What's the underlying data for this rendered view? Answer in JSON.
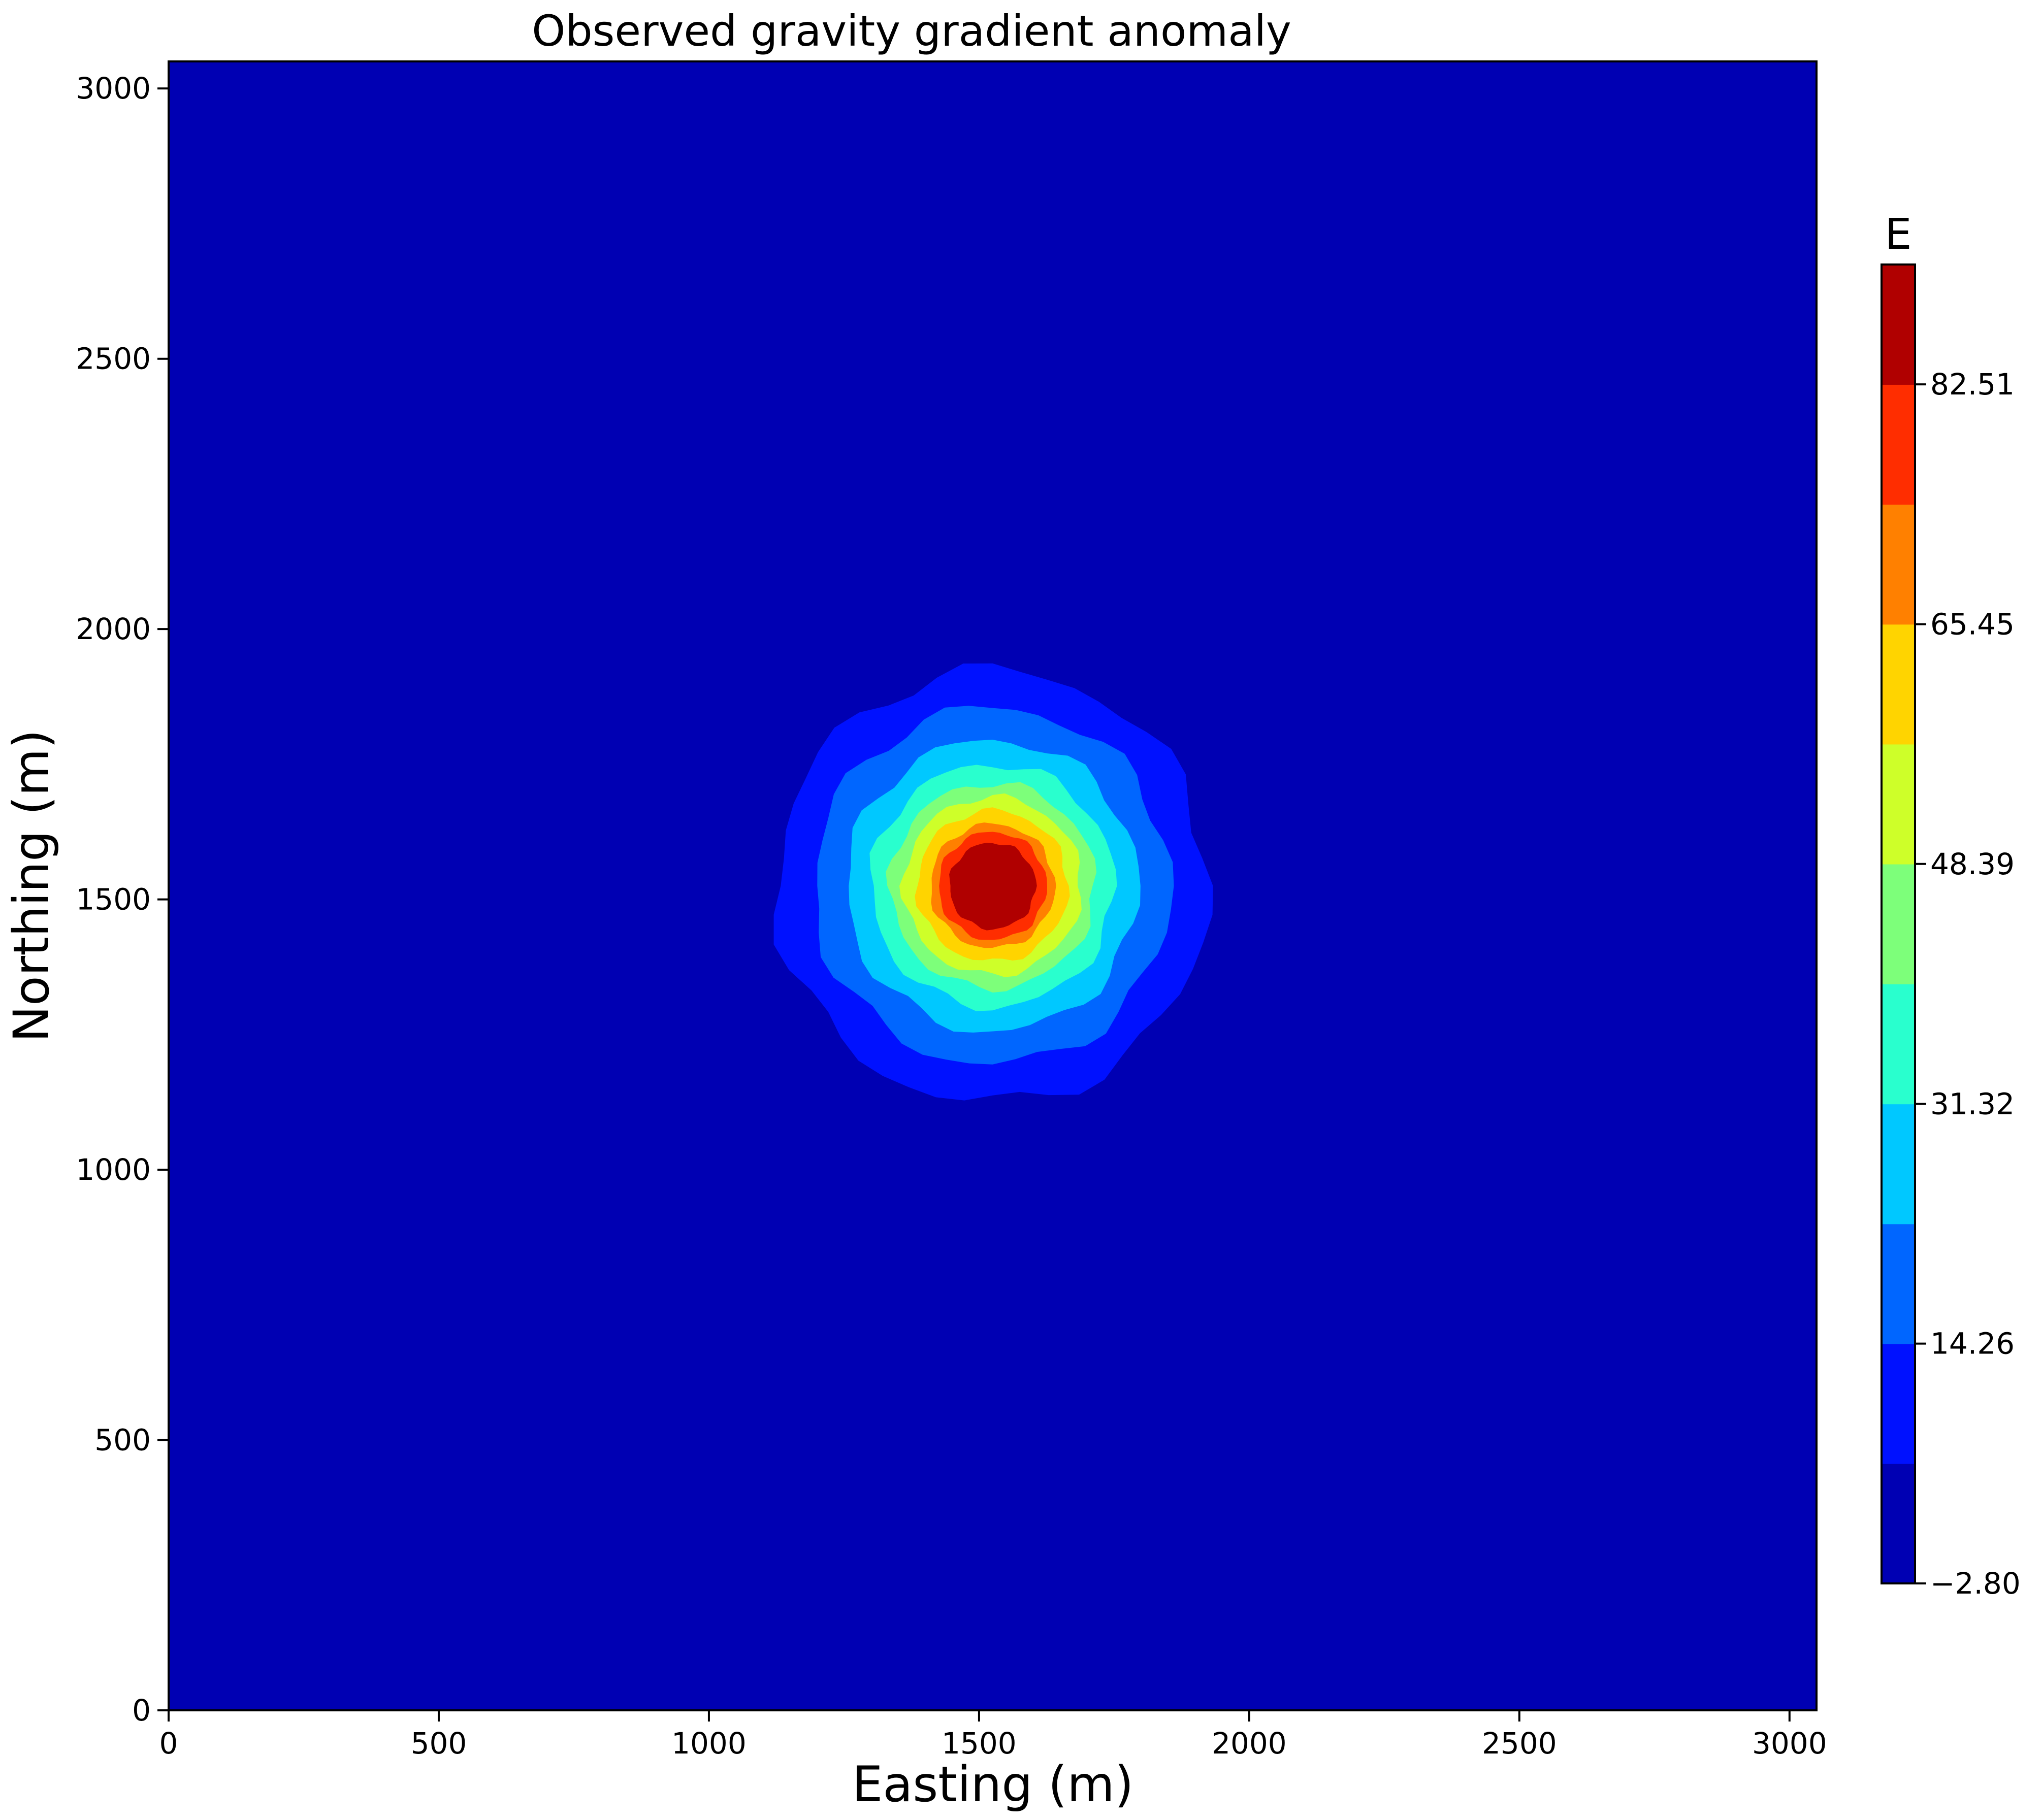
{
  "chart_data": {
    "type": "contourf",
    "title": "Observed gravity gradient anomaly",
    "xlabel": "Easting (m)",
    "ylabel": "Northing (m)",
    "xlim": [
      0,
      3050
    ],
    "ylim": [
      0,
      3050
    ],
    "x_ticks": [
      0,
      500,
      1000,
      1500,
      2000,
      2500,
      3000
    ],
    "y_ticks": [
      0,
      500,
      1000,
      1500,
      2000,
      2500,
      3000
    ],
    "x_tick_labels": [
      "0",
      "500",
      "1000",
      "1500",
      "2000",
      "2500",
      "3000"
    ],
    "y_tick_labels": [
      "0",
      "500",
      "1000",
      "1500",
      "2000",
      "2500",
      "3000"
    ],
    "anomaly": {
      "center_x": 1525,
      "center_y": 1525,
      "contours": [
        {
          "level": 5.73,
          "radius": 400,
          "color": "#0011ff"
        },
        {
          "level": 14.26,
          "radius": 330,
          "color": "#0066ff"
        },
        {
          "level": 22.79,
          "radius": 270,
          "color": "#00c8ff"
        },
        {
          "level": 31.32,
          "radius": 225,
          "color": "#29ffce"
        },
        {
          "level": 39.86,
          "radius": 190,
          "color": "#7dff7a"
        },
        {
          "level": 48.39,
          "radius": 165,
          "color": "#ceff29"
        },
        {
          "level": 56.92,
          "radius": 140,
          "color": "#ffd400"
        },
        {
          "level": 65.45,
          "radius": 115,
          "color": "#ff8000"
        },
        {
          "level": 73.98,
          "radius": 100,
          "color": "#ff2d00"
        },
        {
          "level": 82.51,
          "radius": 80,
          "color": "#b00000"
        }
      ]
    },
    "colorbar": {
      "label": "E",
      "min": -2.8,
      "max": 91.04,
      "tick_values": [
        -2.8,
        14.26,
        31.32,
        48.39,
        65.45,
        82.51
      ],
      "tick_labels": [
        "−2.80",
        "14.26",
        "31.32",
        "48.39",
        "65.45",
        "82.51"
      ],
      "boundaries": [
        -2.8,
        5.73,
        14.26,
        22.79,
        31.32,
        39.86,
        48.39,
        56.92,
        65.45,
        73.98,
        82.51,
        91.04
      ],
      "colors": [
        "#0000b3",
        "#0011ff",
        "#0066ff",
        "#00c8ff",
        "#29ffce",
        "#7dff7a",
        "#ceff29",
        "#ffd400",
        "#ff8000",
        "#ff2d00",
        "#b00000"
      ]
    }
  }
}
